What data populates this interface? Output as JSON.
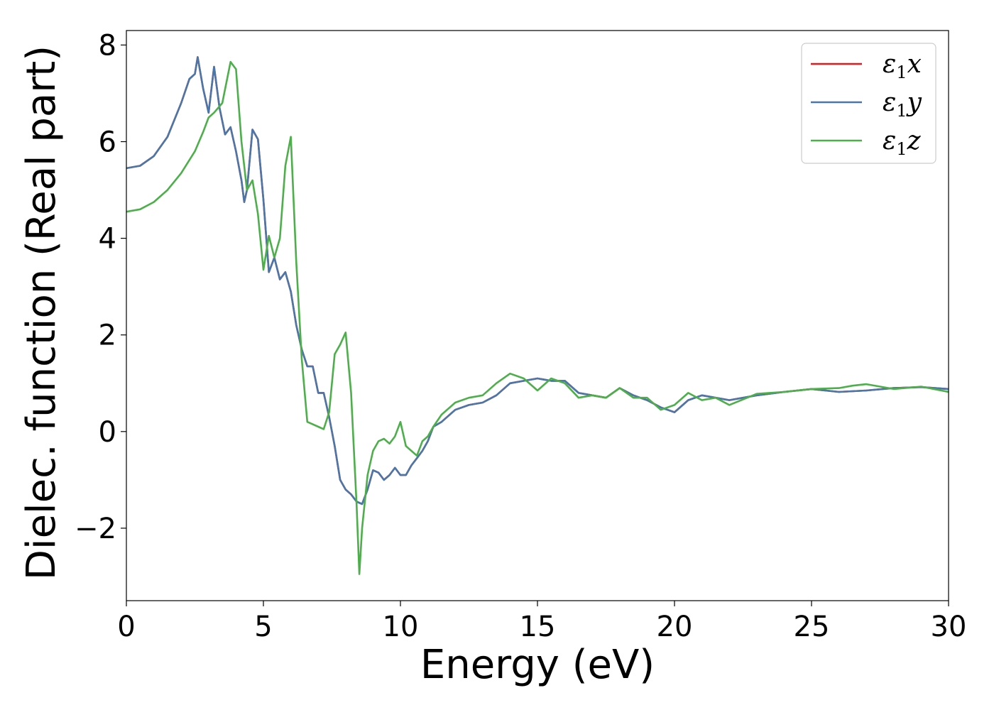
{
  "chart_data": {
    "type": "line",
    "xlabel": "Energy (eV)",
    "ylabel": "Dielec. function (Real part)",
    "xlim": [
      0,
      30
    ],
    "ylim": [
      -3.5,
      8.3
    ],
    "xticks": [
      0,
      5,
      10,
      15,
      20,
      25,
      30
    ],
    "xtick_labels": [
      "0",
      "5",
      "10",
      "15",
      "20",
      "25",
      "30"
    ],
    "yticks": [
      -2,
      0,
      2,
      4,
      6,
      8
    ],
    "ytick_labels": [
      "−2",
      "0",
      "2",
      "4",
      "6",
      "8"
    ],
    "grid": false,
    "legend_position": "top-right",
    "series": [
      {
        "name": "ε1x",
        "legend_main": "ε",
        "legend_sub": "1",
        "legend_var": "x",
        "color": "#e41a1c",
        "x": [
          0,
          0.5,
          1,
          1.5,
          2,
          2.3,
          2.5,
          2.6,
          2.8,
          3,
          3.2,
          3.4,
          3.6,
          3.8,
          4,
          4.2,
          4.3,
          4.4,
          4.6,
          4.8,
          5,
          5.2,
          5.4,
          5.6,
          5.8,
          6,
          6.2,
          6.4,
          6.6,
          6.8,
          7,
          7.2,
          7.4,
          7.6,
          7.8,
          8,
          8.2,
          8.4,
          8.6,
          8.8,
          9,
          9.2,
          9.4,
          9.6,
          9.8,
          10,
          10.2,
          10.4,
          10.6,
          10.8,
          11,
          11.2,
          11.5,
          12,
          12.5,
          13,
          13.5,
          14,
          14.5,
          15,
          15.5,
          16,
          16.5,
          17,
          17.5,
          18,
          18.5,
          19,
          19.5,
          20,
          20.5,
          21,
          21.5,
          22,
          23,
          24,
          25,
          26,
          27,
          28,
          29,
          30
        ],
        "y": [
          5.45,
          5.5,
          5.7,
          6.1,
          6.8,
          7.3,
          7.4,
          7.75,
          7.1,
          6.6,
          7.55,
          6.7,
          6.15,
          6.3,
          5.8,
          5.2,
          4.75,
          5.0,
          6.25,
          6.05,
          4.8,
          3.3,
          3.6,
          3.15,
          3.3,
          2.9,
          2.2,
          1.7,
          1.35,
          1.35,
          0.8,
          0.8,
          0.3,
          -0.3,
          -1.0,
          -1.2,
          -1.3,
          -1.45,
          -1.5,
          -1.2,
          -0.8,
          -0.85,
          -1.0,
          -0.9,
          -0.75,
          -0.9,
          -0.9,
          -0.7,
          -0.55,
          -0.4,
          -0.2,
          0.1,
          0.2,
          0.45,
          0.55,
          0.6,
          0.75,
          1.0,
          1.05,
          1.1,
          1.05,
          1.05,
          0.8,
          0.75,
          0.7,
          0.9,
          0.75,
          0.65,
          0.5,
          0.4,
          0.65,
          0.75,
          0.7,
          0.65,
          0.75,
          0.82,
          0.88,
          0.82,
          0.85,
          0.9,
          0.92,
          0.88
        ]
      },
      {
        "name": "ε1y",
        "legend_main": "ε",
        "legend_sub": "1",
        "legend_var": "y",
        "color": "#4a77aa",
        "x": [
          0,
          0.5,
          1,
          1.5,
          2,
          2.3,
          2.5,
          2.6,
          2.8,
          3,
          3.2,
          3.4,
          3.6,
          3.8,
          4,
          4.2,
          4.3,
          4.4,
          4.6,
          4.8,
          5,
          5.2,
          5.4,
          5.6,
          5.8,
          6,
          6.2,
          6.4,
          6.6,
          6.8,
          7,
          7.2,
          7.4,
          7.6,
          7.8,
          8,
          8.2,
          8.4,
          8.6,
          8.8,
          9,
          9.2,
          9.4,
          9.6,
          9.8,
          10,
          10.2,
          10.4,
          10.6,
          10.8,
          11,
          11.2,
          11.5,
          12,
          12.5,
          13,
          13.5,
          14,
          14.5,
          15,
          15.5,
          16,
          16.5,
          17,
          17.5,
          18,
          18.5,
          19,
          19.5,
          20,
          20.5,
          21,
          21.5,
          22,
          23,
          24,
          25,
          26,
          27,
          28,
          29,
          30
        ],
        "y": [
          5.45,
          5.5,
          5.7,
          6.1,
          6.8,
          7.3,
          7.4,
          7.75,
          7.1,
          6.6,
          7.55,
          6.7,
          6.15,
          6.3,
          5.8,
          5.2,
          4.75,
          5.0,
          6.25,
          6.05,
          4.8,
          3.3,
          3.6,
          3.15,
          3.3,
          2.9,
          2.2,
          1.7,
          1.35,
          1.35,
          0.8,
          0.8,
          0.3,
          -0.3,
          -1.0,
          -1.2,
          -1.3,
          -1.45,
          -1.5,
          -1.2,
          -0.8,
          -0.85,
          -1.0,
          -0.9,
          -0.75,
          -0.9,
          -0.9,
          -0.7,
          -0.55,
          -0.4,
          -0.2,
          0.1,
          0.2,
          0.45,
          0.55,
          0.6,
          0.75,
          1.0,
          1.05,
          1.1,
          1.05,
          1.05,
          0.8,
          0.75,
          0.7,
          0.9,
          0.75,
          0.65,
          0.5,
          0.4,
          0.65,
          0.75,
          0.7,
          0.65,
          0.75,
          0.82,
          0.88,
          0.82,
          0.85,
          0.9,
          0.92,
          0.88
        ]
      },
      {
        "name": "ε1z",
        "legend_main": "ε",
        "legend_sub": "1",
        "legend_var": "z",
        "color": "#4daf4a",
        "x": [
          0,
          0.5,
          1,
          1.5,
          2,
          2.5,
          2.8,
          3,
          3.2,
          3.5,
          3.8,
          4,
          4.2,
          4.4,
          4.6,
          4.8,
          5,
          5.2,
          5.4,
          5.6,
          5.8,
          6,
          6.2,
          6.4,
          6.6,
          6.8,
          7,
          7.2,
          7.4,
          7.6,
          7.8,
          8,
          8.2,
          8.4,
          8.5,
          8.6,
          8.8,
          9,
          9.2,
          9.4,
          9.6,
          9.8,
          10,
          10.2,
          10.4,
          10.6,
          10.8,
          11,
          11.2,
          11.5,
          12,
          12.5,
          13,
          13.5,
          14,
          14.5,
          15,
          15.5,
          16,
          16.5,
          17,
          17.5,
          18,
          18.5,
          19,
          19.5,
          20,
          20.5,
          21,
          21.5,
          22,
          23,
          24,
          25,
          26,
          26.5,
          27,
          28,
          29,
          30
        ],
        "y": [
          4.55,
          4.6,
          4.75,
          5.0,
          5.35,
          5.8,
          6.2,
          6.5,
          6.6,
          6.8,
          7.65,
          7.5,
          6.0,
          5.0,
          5.2,
          4.5,
          3.35,
          4.05,
          3.6,
          4.0,
          5.5,
          6.1,
          3.5,
          1.5,
          0.2,
          0.15,
          0.1,
          0.05,
          0.4,
          1.6,
          1.8,
          2.05,
          0.8,
          -1.5,
          -2.95,
          -2.0,
          -0.9,
          -0.4,
          -0.2,
          -0.15,
          -0.25,
          -0.1,
          0.2,
          -0.3,
          -0.4,
          -0.5,
          -0.2,
          -0.1,
          0.1,
          0.35,
          0.6,
          0.7,
          0.75,
          1.0,
          1.2,
          1.1,
          0.85,
          1.1,
          1.0,
          0.7,
          0.75,
          0.7,
          0.9,
          0.7,
          0.7,
          0.45,
          0.55,
          0.8,
          0.65,
          0.7,
          0.55,
          0.78,
          0.82,
          0.88,
          0.9,
          0.95,
          0.98,
          0.88,
          0.93,
          0.82
        ]
      }
    ]
  }
}
